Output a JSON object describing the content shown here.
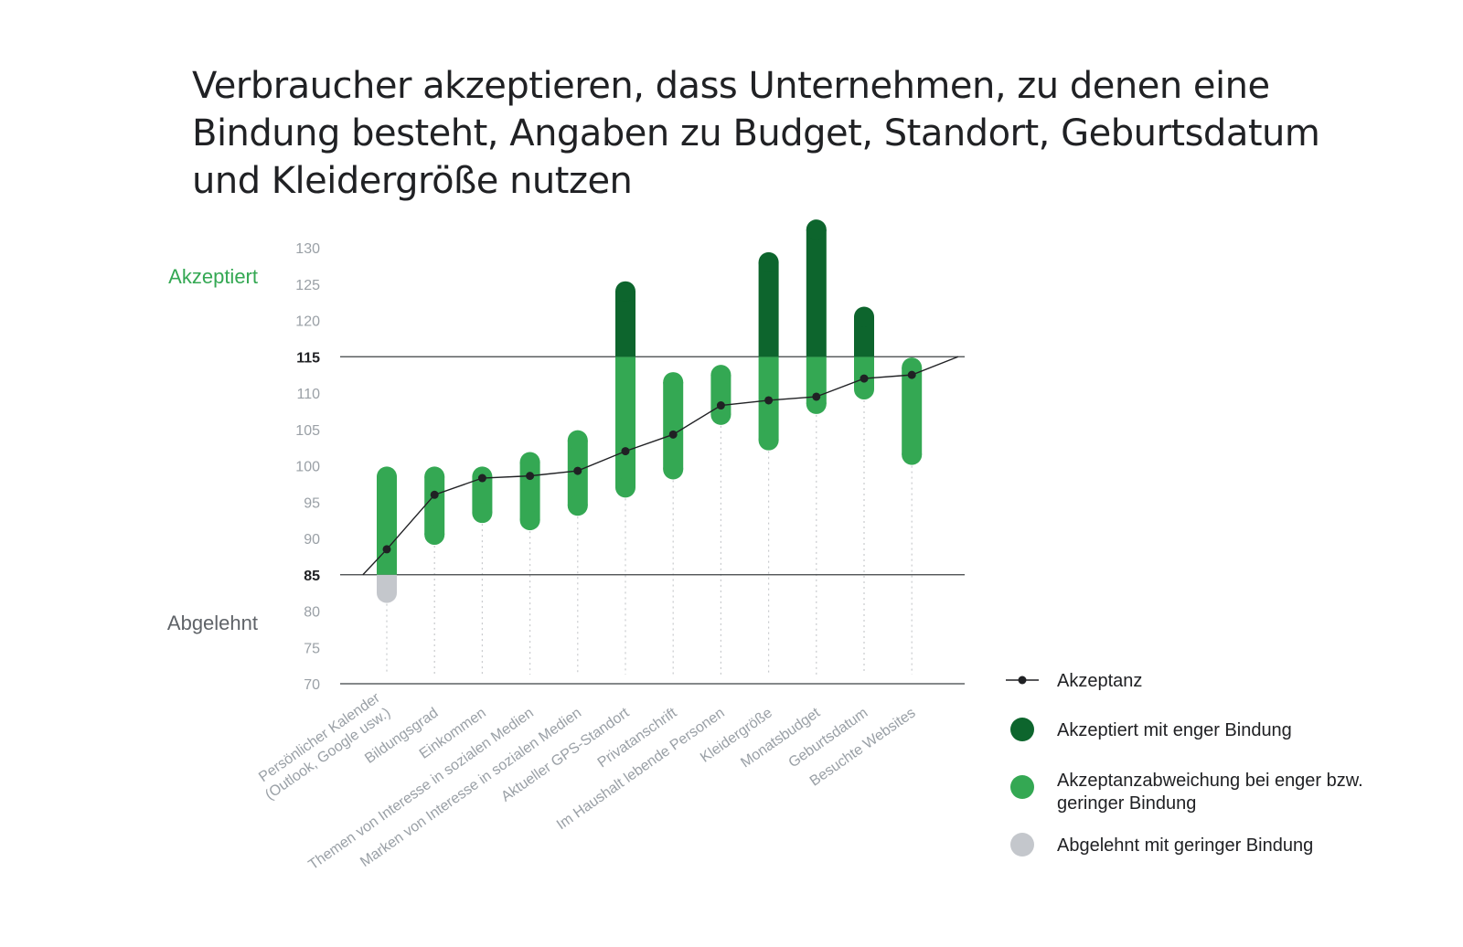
{
  "title_lines": [
    "Verbraucher akzeptieren, dass Unternehmen, zu denen eine",
    "Bindung besteht, Angaben zu Budget, Standort, Geburtsdatum",
    "und Kleidergröße nutzen"
  ],
  "labels": {
    "accepted": "Akzeptiert",
    "rejected": "Abgelehnt"
  },
  "legend": {
    "line": "Akzeptanz",
    "dark": "Akzeptiert mit enger Bindung",
    "mid_lines": [
      "Akzeptanzabweichung bei enger bzw.",
      "geringer Bindung"
    ],
    "grey": "Abgelehnt mit geringer Bindung"
  },
  "colors": {
    "dark": "#0d652d",
    "mid": "#34a853",
    "grey": "#c4c7cc",
    "line": "#202124"
  },
  "chart_data": {
    "type": "range-bar-with-line",
    "ylim": [
      70,
      133
    ],
    "yticks": [
      70,
      75,
      80,
      85,
      90,
      95,
      100,
      105,
      110,
      115,
      120,
      125,
      130
    ],
    "thresholds": {
      "rejected_below": 85,
      "accepted_above": 115
    },
    "categories": [
      [
        "Persönlicher Kalender",
        "(Outlook, Google usw.)"
      ],
      [
        "Bildungsgrad"
      ],
      [
        "Einkommen"
      ],
      [
        "Themen von Interesse in sozialen Medien"
      ],
      [
        "Marken von Interesse in sozialen Medien"
      ],
      [
        "Aktueller GPS-Standort"
      ],
      [
        "Privatanschrift"
      ],
      [
        "Im Haushalt lebende Personen"
      ],
      [
        "Kleidergröße"
      ],
      [
        "Monatsbudget"
      ],
      [
        "Geburtsdatum"
      ],
      [
        "Besuchte Websites"
      ]
    ],
    "ranges": [
      [
        82.5,
        98.5
      ],
      [
        90.5,
        98.5
      ],
      [
        93.5,
        98.5
      ],
      [
        92.5,
        100.5
      ],
      [
        94.5,
        103.5
      ],
      [
        97,
        124
      ],
      [
        99.5,
        111.5
      ],
      [
        107,
        112.5
      ],
      [
        103.5,
        128
      ],
      [
        108.5,
        132.5
      ],
      [
        110.5,
        120.5
      ],
      [
        101.5,
        113.5
      ]
    ],
    "acceptance": [
      88.5,
      96,
      98.3,
      98.6,
      99.3,
      102,
      104.3,
      108.3,
      109,
      109.5,
      112,
      112.5
    ],
    "line_start": 85,
    "line_end": 115
  }
}
